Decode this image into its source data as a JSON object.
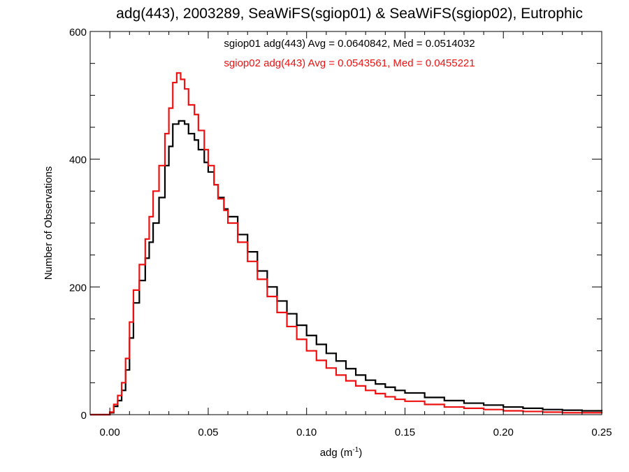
{
  "chart_data": {
    "type": "line",
    "style": "step-histogram",
    "title": "adg(443), 2003289, SeaWiFS(sgiop01) & SeaWiFS(sgiop02), Eutrophic",
    "xlabel": "adg (m",
    "xlabel_sup": "-1",
    "xlabel_tail": ")",
    "ylabel": "Number of Observations",
    "xlim": [
      -0.01,
      0.25
    ],
    "ylim": [
      0,
      600
    ],
    "xticks": [
      {
        "v": 0.0,
        "label": "0.00"
      },
      {
        "v": 0.05,
        "label": "0.05"
      },
      {
        "v": 0.1,
        "label": "0.10"
      },
      {
        "v": 0.15,
        "label": "0.15"
      },
      {
        "v": 0.2,
        "label": "0.20"
      },
      {
        "v": 0.25,
        "label": "0.25"
      }
    ],
    "yticks": [
      {
        "v": 0,
        "label": "0"
      },
      {
        "v": 200,
        "label": "200"
      },
      {
        "v": 400,
        "label": "400"
      },
      {
        "v": 600,
        "label": "600"
      }
    ],
    "grid": false,
    "annotations": [
      {
        "text": "sgiop01 adg(443) Avg = 0.0640842, Med = 0.0514032",
        "color": "#000000"
      },
      {
        "text": "sgiop02 adg(443) Avg = 0.0543561, Med = 0.0455221",
        "color": "#ee1111"
      }
    ],
    "series": [
      {
        "color": "#000000",
        "points": [
          [
            -0.01,
            0
          ],
          [
            -0.001,
            0
          ],
          [
            0.0,
            3
          ],
          [
            0.002,
            13
          ],
          [
            0.004,
            22
          ],
          [
            0.006,
            38
          ],
          [
            0.008,
            70
          ],
          [
            0.01,
            120
          ],
          [
            0.012,
            175
          ],
          [
            0.015,
            210
          ],
          [
            0.018,
            245
          ],
          [
            0.02,
            270
          ],
          [
            0.022,
            300
          ],
          [
            0.025,
            340
          ],
          [
            0.028,
            390
          ],
          [
            0.03,
            420
          ],
          [
            0.032,
            455
          ],
          [
            0.035,
            460
          ],
          [
            0.038,
            455
          ],
          [
            0.04,
            440
          ],
          [
            0.043,
            430
          ],
          [
            0.045,
            415
          ],
          [
            0.048,
            395
          ],
          [
            0.05,
            380
          ],
          [
            0.053,
            360
          ],
          [
            0.055,
            340
          ],
          [
            0.058,
            322
          ],
          [
            0.06,
            310
          ],
          [
            0.065,
            282
          ],
          [
            0.07,
            255
          ],
          [
            0.075,
            225
          ],
          [
            0.08,
            200
          ],
          [
            0.085,
            178
          ],
          [
            0.09,
            158
          ],
          [
            0.095,
            140
          ],
          [
            0.1,
            124
          ],
          [
            0.105,
            110
          ],
          [
            0.11,
            96
          ],
          [
            0.115,
            84
          ],
          [
            0.12,
            72
          ],
          [
            0.125,
            62
          ],
          [
            0.13,
            54
          ],
          [
            0.135,
            48
          ],
          [
            0.14,
            43
          ],
          [
            0.145,
            38
          ],
          [
            0.15,
            34
          ],
          [
            0.16,
            27
          ],
          [
            0.17,
            22
          ],
          [
            0.18,
            18
          ],
          [
            0.19,
            15
          ],
          [
            0.2,
            12
          ],
          [
            0.21,
            10
          ],
          [
            0.22,
            8
          ],
          [
            0.23,
            7
          ],
          [
            0.24,
            6
          ],
          [
            0.25,
            5
          ]
        ]
      },
      {
        "color": "#ee1111",
        "points": [
          [
            -0.01,
            0
          ],
          [
            -0.001,
            0
          ],
          [
            0.0,
            4
          ],
          [
            0.002,
            16
          ],
          [
            0.004,
            30
          ],
          [
            0.006,
            50
          ],
          [
            0.008,
            88
          ],
          [
            0.01,
            145
          ],
          [
            0.012,
            195
          ],
          [
            0.015,
            235
          ],
          [
            0.018,
            275
          ],
          [
            0.02,
            310
          ],
          [
            0.022,
            350
          ],
          [
            0.025,
            390
          ],
          [
            0.028,
            440
          ],
          [
            0.03,
            480
          ],
          [
            0.032,
            520
          ],
          [
            0.034,
            535
          ],
          [
            0.036,
            525
          ],
          [
            0.038,
            510
          ],
          [
            0.04,
            485
          ],
          [
            0.043,
            470
          ],
          [
            0.045,
            445
          ],
          [
            0.048,
            415
          ],
          [
            0.05,
            390
          ],
          [
            0.053,
            360
          ],
          [
            0.055,
            338
          ],
          [
            0.058,
            320
          ],
          [
            0.06,
            300
          ],
          [
            0.065,
            270
          ],
          [
            0.07,
            240
          ],
          [
            0.075,
            212
          ],
          [
            0.08,
            185
          ],
          [
            0.085,
            160
          ],
          [
            0.09,
            138
          ],
          [
            0.095,
            118
          ],
          [
            0.1,
            100
          ],
          [
            0.105,
            85
          ],
          [
            0.11,
            73
          ],
          [
            0.115,
            62
          ],
          [
            0.12,
            53
          ],
          [
            0.125,
            45
          ],
          [
            0.13,
            38
          ],
          [
            0.135,
            33
          ],
          [
            0.14,
            28
          ],
          [
            0.145,
            24
          ],
          [
            0.15,
            21
          ],
          [
            0.16,
            16
          ],
          [
            0.17,
            12
          ],
          [
            0.18,
            10
          ],
          [
            0.19,
            8
          ],
          [
            0.2,
            6
          ],
          [
            0.21,
            5
          ],
          [
            0.22,
            4
          ],
          [
            0.23,
            3
          ],
          [
            0.24,
            3
          ],
          [
            0.25,
            2
          ]
        ]
      }
    ]
  }
}
